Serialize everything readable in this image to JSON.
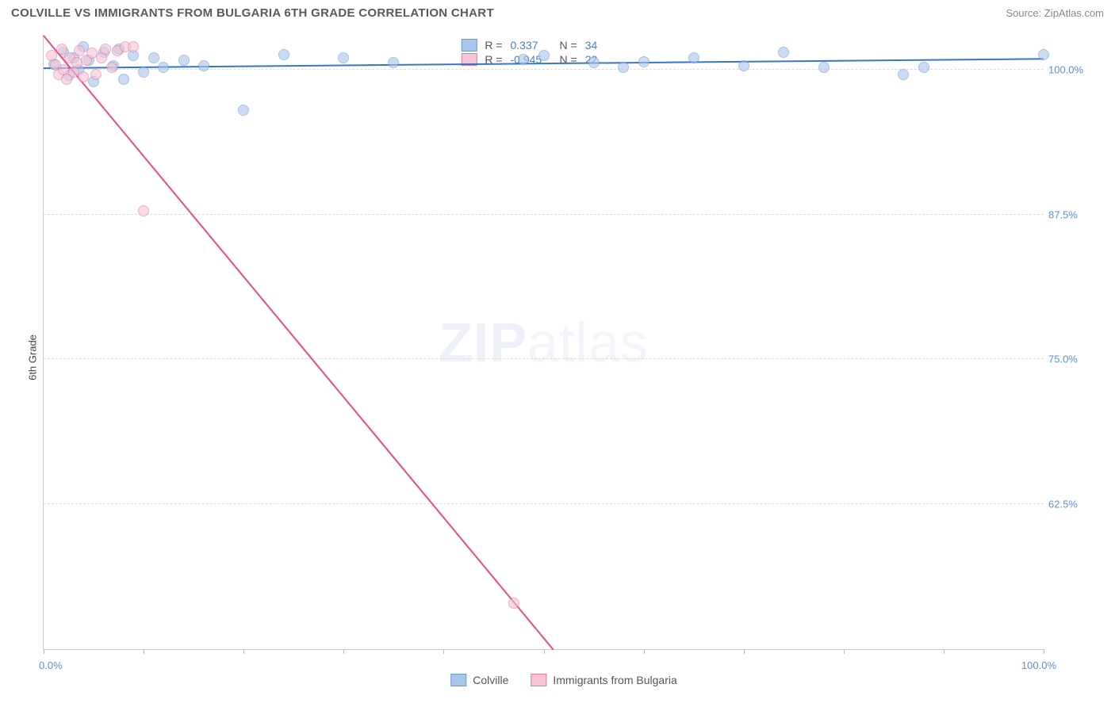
{
  "title": "COLVILLE VS IMMIGRANTS FROM BULGARIA 6TH GRADE CORRELATION CHART",
  "source": "Source: ZipAtlas.com",
  "ylabel": "6th Grade",
  "watermark_a": "ZIP",
  "watermark_b": "atlas",
  "chart": {
    "type": "scatter",
    "background_color": "#ffffff",
    "grid_color": "#dddddd",
    "axis_color": "#cccccc",
    "xlim": [
      0,
      100
    ],
    "ylim": [
      50,
      103
    ],
    "x_ticks": [
      0,
      10,
      20,
      30,
      40,
      50,
      60,
      70,
      80,
      90,
      100
    ],
    "x_min_label": "0.0%",
    "x_max_label": "100.0%",
    "y_ticks": [
      {
        "v": 62.5,
        "label": "62.5%"
      },
      {
        "v": 75.0,
        "label": "75.0%"
      },
      {
        "v": 87.5,
        "label": "87.5%"
      },
      {
        "v": 100.0,
        "label": "100.0%"
      }
    ],
    "tick_label_color": "#5a8fd6",
    "series": [
      {
        "name": "Colville",
        "color_fill": "#a8c6ec",
        "color_stroke": "#6a9ad6",
        "marker_size": 14,
        "trend": {
          "x1": 0,
          "y1": 100.2,
          "x2": 100,
          "y2": 101.0,
          "color": "#3b76c4",
          "width": 2
        },
        "R_label": "R =",
        "R": "0.337",
        "N_label": "N =",
        "N": "34",
        "points": [
          {
            "x": 1,
            "y": 100.5
          },
          {
            "x": 2,
            "y": 101.5
          },
          {
            "x": 2.5,
            "y": 99.5
          },
          {
            "x": 3,
            "y": 101
          },
          {
            "x": 3.5,
            "y": 100
          },
          {
            "x": 4,
            "y": 102
          },
          {
            "x": 4.5,
            "y": 100.8
          },
          {
            "x": 5,
            "y": 99
          },
          {
            "x": 6,
            "y": 101.5
          },
          {
            "x": 7,
            "y": 100.3
          },
          {
            "x": 7.5,
            "y": 101.8
          },
          {
            "x": 8,
            "y": 99.2
          },
          {
            "x": 9,
            "y": 101.2
          },
          {
            "x": 10,
            "y": 99.8
          },
          {
            "x": 11,
            "y": 101
          },
          {
            "x": 12,
            "y": 100.2
          },
          {
            "x": 14,
            "y": 100.8
          },
          {
            "x": 16,
            "y": 100.3
          },
          {
            "x": 20,
            "y": 96.5
          },
          {
            "x": 24,
            "y": 101.3
          },
          {
            "x": 30,
            "y": 101
          },
          {
            "x": 35,
            "y": 100.6
          },
          {
            "x": 48,
            "y": 100.9
          },
          {
            "x": 50,
            "y": 101.2
          },
          {
            "x": 55,
            "y": 100.6
          },
          {
            "x": 58,
            "y": 100.2
          },
          {
            "x": 60,
            "y": 100.7
          },
          {
            "x": 65,
            "y": 101
          },
          {
            "x": 70,
            "y": 100.3
          },
          {
            "x": 74,
            "y": 101.5
          },
          {
            "x": 78,
            "y": 100.2
          },
          {
            "x": 86,
            "y": 99.6
          },
          {
            "x": 88,
            "y": 100.2
          },
          {
            "x": 100,
            "y": 101.3
          }
        ]
      },
      {
        "name": "Immigrants from Bulgaria",
        "color_fill": "#f5c4d5",
        "color_stroke": "#e57aa3",
        "marker_size": 14,
        "trend": {
          "x1": 0,
          "y1": 103,
          "x2": 51,
          "y2": 50,
          "color": "#e94b87",
          "width": 1.5
        },
        "R_label": "R =",
        "R": "-0.945",
        "N_label": "N =",
        "N": "22",
        "points": [
          {
            "x": 0.8,
            "y": 101.2
          },
          {
            "x": 1.2,
            "y": 100.4
          },
          {
            "x": 1.5,
            "y": 99.6
          },
          {
            "x": 1.8,
            "y": 101.8
          },
          {
            "x": 2,
            "y": 100
          },
          {
            "x": 2.3,
            "y": 99.2
          },
          {
            "x": 2.6,
            "y": 101
          },
          {
            "x": 3,
            "y": 99.8
          },
          {
            "x": 3.3,
            "y": 100.6
          },
          {
            "x": 3.6,
            "y": 101.6
          },
          {
            "x": 4,
            "y": 99.4
          },
          {
            "x": 4.3,
            "y": 100.8
          },
          {
            "x": 4.8,
            "y": 101.4
          },
          {
            "x": 5.2,
            "y": 99.6
          },
          {
            "x": 5.8,
            "y": 101
          },
          {
            "x": 6.2,
            "y": 101.8
          },
          {
            "x": 6.8,
            "y": 100.2
          },
          {
            "x": 7.4,
            "y": 101.6
          },
          {
            "x": 8.2,
            "y": 102
          },
          {
            "x": 9,
            "y": 102
          },
          {
            "x": 10,
            "y": 87.8
          },
          {
            "x": 47,
            "y": 54
          }
        ]
      }
    ]
  },
  "bottom_legend": {
    "items": [
      {
        "label": "Colville",
        "fill": "#a8c6ec",
        "stroke": "#6a9ad6"
      },
      {
        "label": "Immigrants from Bulgaria",
        "fill": "#f5c4d5",
        "stroke": "#e57aa3"
      }
    ]
  }
}
